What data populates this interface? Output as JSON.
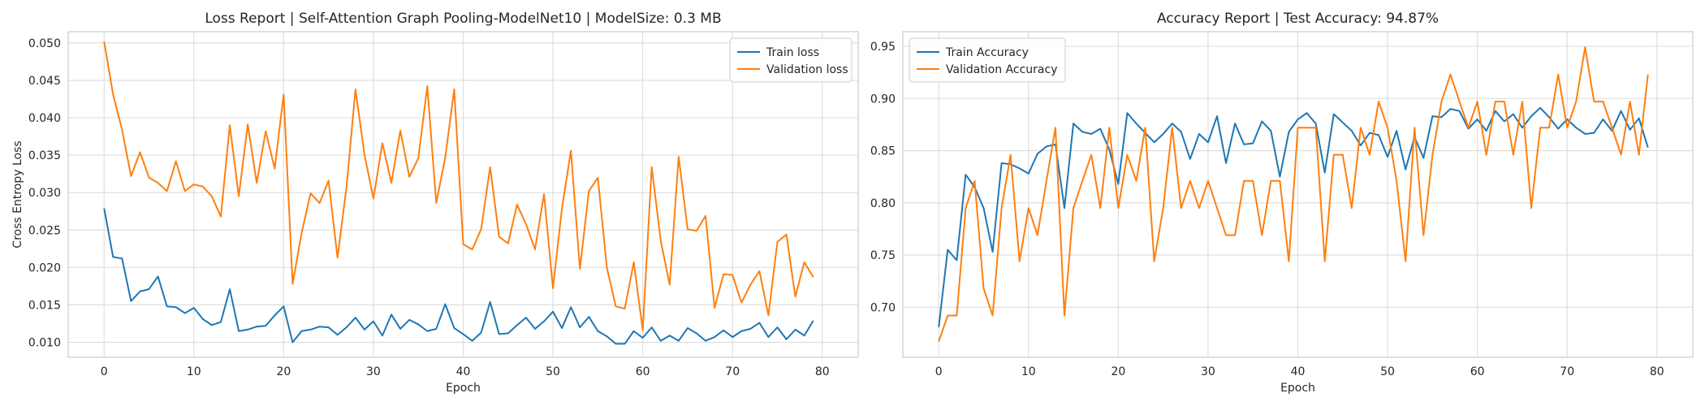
{
  "chart_data": [
    {
      "type": "line",
      "title": "Loss Report | Self-Attention Graph Pooling-ModelNet10 | ModelSize: 0.3 MB",
      "xlabel": "Epoch",
      "ylabel": "Cross Entropy Loss",
      "xlim": [
        -4,
        84
      ],
      "ylim": [
        0.008,
        0.0515
      ],
      "xticks": [
        0,
        10,
        20,
        30,
        40,
        50,
        60,
        70,
        80
      ],
      "yticks": [
        0.01,
        0.015,
        0.02,
        0.025,
        0.03,
        0.035,
        0.04,
        0.045,
        0.05
      ],
      "ytick_labels": [
        "0.010",
        "0.015",
        "0.020",
        "0.025",
        "0.030",
        "0.035",
        "0.040",
        "0.045",
        "0.050"
      ],
      "grid": true,
      "legend_position": "top-right",
      "series": [
        {
          "name": "Train loss",
          "color": "#1f77b4",
          "values": [
            0.0279,
            0.0214,
            0.0212,
            0.0155,
            0.0168,
            0.0171,
            0.0188,
            0.0148,
            0.0147,
            0.0139,
            0.0146,
            0.0131,
            0.0123,
            0.0127,
            0.0171,
            0.0115,
            0.0117,
            0.0121,
            0.0122,
            0.0136,
            0.0148,
            0.01,
            0.0115,
            0.0117,
            0.0121,
            0.012,
            0.011,
            0.012,
            0.0133,
            0.0117,
            0.0128,
            0.0109,
            0.0137,
            0.0118,
            0.013,
            0.0124,
            0.0115,
            0.0118,
            0.0151,
            0.0119,
            0.0111,
            0.0102,
            0.0113,
            0.0154,
            0.0111,
            0.0112,
            0.0123,
            0.0133,
            0.0118,
            0.0128,
            0.0141,
            0.0119,
            0.0147,
            0.012,
            0.0134,
            0.0115,
            0.0108,
            0.0098,
            0.0098,
            0.0115,
            0.0106,
            0.012,
            0.0102,
            0.0109,
            0.0102,
            0.0119,
            0.0112,
            0.0102,
            0.0107,
            0.0116,
            0.0107,
            0.0115,
            0.0118,
            0.0126,
            0.0107,
            0.012,
            0.0104,
            0.0117,
            0.0109,
            0.0129
          ]
        },
        {
          "name": "Validation loss",
          "color": "#ff7f0e",
          "values": [
            0.0502,
            0.0431,
            0.0384,
            0.0322,
            0.0354,
            0.032,
            0.0313,
            0.0302,
            0.0342,
            0.0302,
            0.0311,
            0.0308,
            0.0295,
            0.0268,
            0.039,
            0.0295,
            0.0391,
            0.0313,
            0.0382,
            0.0332,
            0.0431,
            0.0178,
            0.0246,
            0.0299,
            0.0286,
            0.0316,
            0.0213,
            0.0307,
            0.0438,
            0.0351,
            0.0292,
            0.0366,
            0.0313,
            0.0383,
            0.0321,
            0.0346,
            0.0442,
            0.0286,
            0.0347,
            0.0438,
            0.0231,
            0.0224,
            0.0251,
            0.0334,
            0.0241,
            0.0232,
            0.0284,
            0.0258,
            0.0224,
            0.0298,
            0.0172,
            0.0279,
            0.0356,
            0.0198,
            0.0302,
            0.032,
            0.02,
            0.0148,
            0.0145,
            0.0207,
            0.0116,
            0.0334,
            0.0236,
            0.0177,
            0.0348,
            0.0251,
            0.0249,
            0.0269,
            0.0146,
            0.0191,
            0.019,
            0.0153,
            0.0177,
            0.0195,
            0.0136,
            0.0234,
            0.0244,
            0.0161,
            0.0207,
            0.0187
          ]
        }
      ]
    },
    {
      "type": "line",
      "title": "Accuracy Report | Test Accuracy: 94.87%",
      "xlabel": "Epoch",
      "ylabel": "",
      "xlim": [
        -4,
        84
      ],
      "ylim": [
        0.652,
        0.964
      ],
      "xticks": [
        0,
        10,
        20,
        30,
        40,
        50,
        60,
        70,
        80
      ],
      "yticks": [
        0.7,
        0.75,
        0.8,
        0.85,
        0.9,
        0.95
      ],
      "ytick_labels": [
        "0.70",
        "0.75",
        "0.80",
        "0.85",
        "0.90",
        "0.95"
      ],
      "grid": true,
      "legend_position": "top-left",
      "series": [
        {
          "name": "Train Accuracy",
          "color": "#1f77b4",
          "values": [
            0.681,
            0.755,
            0.745,
            0.827,
            0.815,
            0.795,
            0.753,
            0.838,
            0.837,
            0.833,
            0.828,
            0.847,
            0.854,
            0.856,
            0.795,
            0.876,
            0.868,
            0.866,
            0.871,
            0.851,
            0.818,
            0.886,
            0.876,
            0.867,
            0.858,
            0.866,
            0.876,
            0.868,
            0.842,
            0.866,
            0.858,
            0.883,
            0.838,
            0.876,
            0.856,
            0.857,
            0.878,
            0.869,
            0.825,
            0.868,
            0.88,
            0.886,
            0.876,
            0.829,
            0.885,
            0.877,
            0.869,
            0.855,
            0.867,
            0.865,
            0.844,
            0.869,
            0.832,
            0.863,
            0.843,
            0.883,
            0.882,
            0.89,
            0.888,
            0.871,
            0.88,
            0.869,
            0.888,
            0.878,
            0.885,
            0.872,
            0.883,
            0.891,
            0.882,
            0.871,
            0.88,
            0.872,
            0.866,
            0.867,
            0.88,
            0.869,
            0.888,
            0.87,
            0.881,
            0.853
          ]
        },
        {
          "name": "Validation Accuracy",
          "color": "#ff7f0e",
          "values": [
            0.667,
            0.692,
            0.692,
            0.795,
            0.821,
            0.718,
            0.692,
            0.795,
            0.846,
            0.744,
            0.795,
            0.769,
            0.821,
            0.872,
            0.692,
            0.795,
            0.821,
            0.846,
            0.795,
            0.872,
            0.795,
            0.846,
            0.821,
            0.872,
            0.744,
            0.795,
            0.872,
            0.795,
            0.821,
            0.795,
            0.821,
            0.795,
            0.769,
            0.769,
            0.821,
            0.821,
            0.769,
            0.821,
            0.821,
            0.744,
            0.872,
            0.872,
            0.872,
            0.744,
            0.846,
            0.846,
            0.795,
            0.872,
            0.846,
            0.897,
            0.872,
            0.821,
            0.744,
            0.872,
            0.769,
            0.846,
            0.897,
            0.923,
            0.897,
            0.872,
            0.897,
            0.846,
            0.897,
            0.897,
            0.846,
            0.897,
            0.795,
            0.872,
            0.872,
            0.923,
            0.872,
            0.897,
            0.949,
            0.897,
            0.897,
            0.872,
            0.846,
            0.897,
            0.846,
            0.923
          ]
        }
      ]
    }
  ]
}
